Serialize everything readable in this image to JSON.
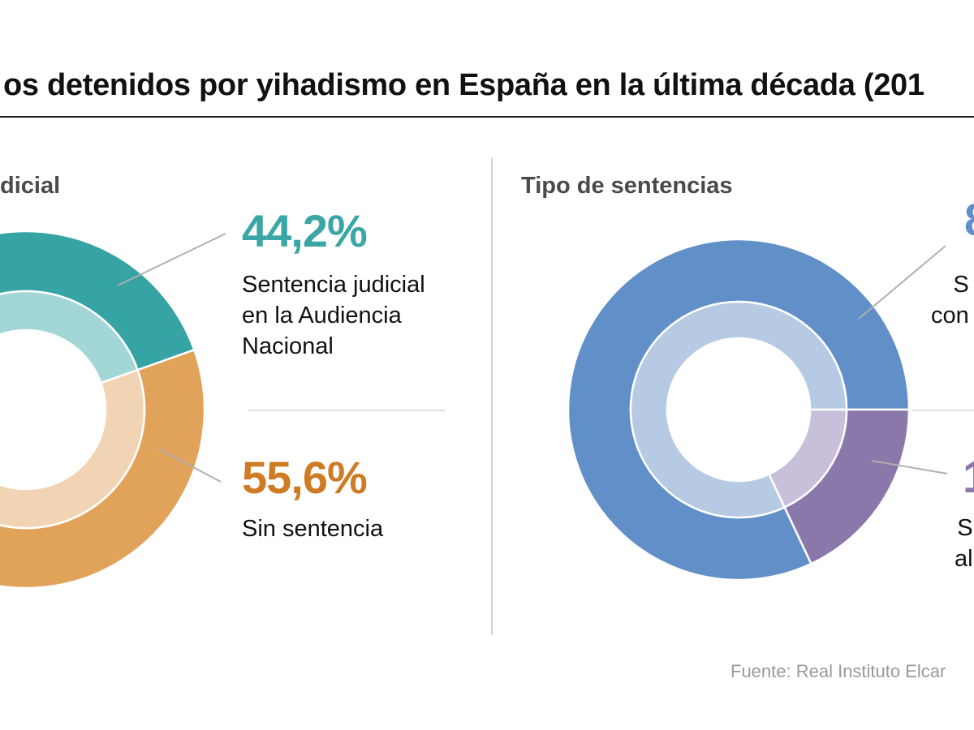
{
  "title": "os detenidos por yihadismo en España en la última década (201",
  "source": "Fuente: Real Instituto Elcar",
  "colors": {
    "teal": "#36a3a4",
    "teal_light": "#a3d6d7",
    "orange": "#e1a25a",
    "orange_light": "#f1d4b4",
    "blue": "#6190c8",
    "blue_light": "#b7cae4",
    "purple": "#8a78ab",
    "purple_light": "#c8bfda",
    "leader": "#b0b0b0"
  },
  "chart_data": [
    {
      "type": "pie",
      "variant": "donut",
      "title": "dicial",
      "categories": [
        "Sentencia judicial en la Audiencia Nacional",
        "Sin sentencia"
      ],
      "values": [
        44.2,
        55.6
      ],
      "unit": "%",
      "labels": [
        {
          "value_text": "44,2%",
          "text": "Sentencia judicial\nen la Audiencia\nNacional"
        },
        {
          "value_text": "55,6%",
          "text": "Sin sentencia"
        }
      ]
    },
    {
      "type": "pie",
      "variant": "donut",
      "title": "Tipo de sentencias",
      "categories": [
        "S… con…",
        "S… al…"
      ],
      "values": [
        82,
        18
      ],
      "unit": "%",
      "labels": [
        {
          "value_text": "8",
          "text": "S\ncon"
        },
        {
          "value_text": "1",
          "text": "S\nal"
        }
      ]
    }
  ]
}
